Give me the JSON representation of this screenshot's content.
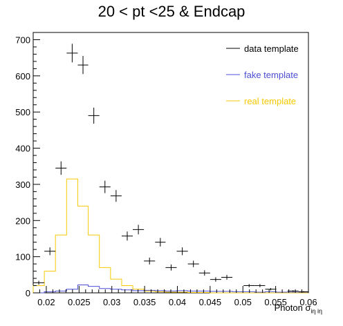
{
  "chart_data": {
    "type": "histogram",
    "title": "20 < pt <25 & Endcap",
    "xlabel_main": "Photon σ",
    "xlabel_sub": "iη iη",
    "xlim": [
      0.018,
      0.06
    ],
    "ylim": [
      0,
      720
    ],
    "x_ticks": [
      "0.02",
      "0.025",
      "0.03",
      "0.035",
      "0.04",
      "0.045",
      "0.05",
      "0.055",
      "0.06"
    ],
    "x_tick_values": [
      0.02,
      0.025,
      0.03,
      0.035,
      0.04,
      0.045,
      0.05,
      0.055,
      0.06
    ],
    "y_ticks": [
      "0",
      "100",
      "200",
      "300",
      "400",
      "500",
      "600",
      "700"
    ],
    "y_tick_values": [
      0,
      100,
      200,
      300,
      400,
      500,
      600,
      700
    ],
    "bin_edges": [
      0.018,
      0.0197,
      0.0214,
      0.0231,
      0.0248,
      0.0264,
      0.0281,
      0.0298,
      0.0315,
      0.0332,
      0.0349,
      0.0366,
      0.0382,
      0.0399,
      0.0416,
      0.0433,
      0.045,
      0.0467,
      0.0484,
      0.0501,
      0.0518,
      0.0534,
      0.0551,
      0.0568,
      0.0585,
      0.06
    ],
    "legend": [
      {
        "label": "data template",
        "color": "#000000"
      },
      {
        "label": "fake template",
        "color": "#4d4dd6"
      },
      {
        "label": "real template",
        "color": "#f5c800"
      }
    ],
    "series": [
      {
        "name": "data template",
        "style": "points",
        "color": "#000000",
        "values": [
          28,
          115,
          345,
          663,
          630,
          490,
          293,
          268,
          157,
          175,
          88,
          140,
          70,
          115,
          80,
          55,
          37,
          43,
          0,
          20,
          20,
          10,
          0,
          5,
          3
        ]
      },
      {
        "name": "fake template",
        "style": "step",
        "color": "#4d4dd6",
        "values": [
          0,
          3,
          5,
          10,
          22,
          18,
          12,
          10,
          8,
          6,
          7,
          6,
          5,
          6,
          5,
          5,
          4,
          4,
          3,
          3,
          2,
          3,
          2,
          2,
          2
        ]
      },
      {
        "name": "real template",
        "style": "step",
        "color": "#f5c800",
        "values": [
          20,
          60,
          160,
          315,
          240,
          160,
          70,
          38,
          20,
          10,
          5,
          3,
          2,
          2,
          1,
          1,
          0,
          0,
          0,
          0,
          0,
          0,
          0,
          0,
          0
        ]
      }
    ]
  }
}
